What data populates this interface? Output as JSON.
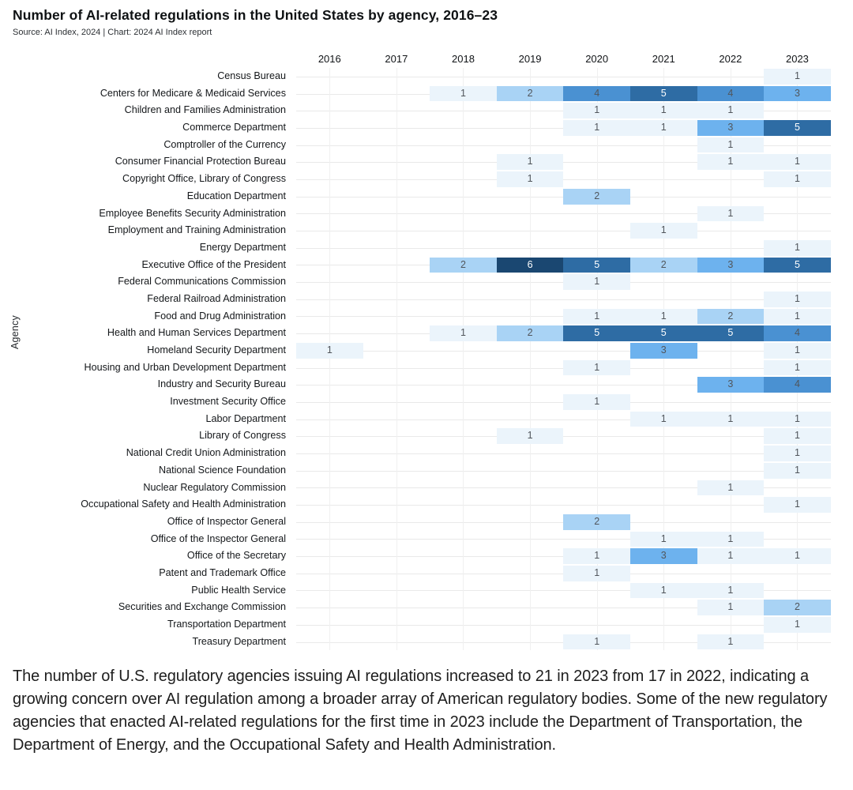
{
  "header": {
    "title": "Number of AI-related regulations in the United States by agency, 2016–23",
    "source": "Source: AI Index, 2024 | Chart: 2024 AI Index report"
  },
  "chart_data": {
    "type": "heatmap",
    "title": "Number of AI-related regulations in the United States by agency, 2016–23",
    "xlabel": "",
    "ylabel": "Agency",
    "columns": [
      "2016",
      "2017",
      "2018",
      "2019",
      "2020",
      "2021",
      "2022",
      "2023"
    ],
    "rows": [
      {
        "agency": "Census Bureau",
        "values": [
          null,
          null,
          null,
          null,
          null,
          null,
          null,
          1
        ]
      },
      {
        "agency": "Centers for Medicare & Medicaid Services",
        "values": [
          null,
          null,
          1,
          2,
          4,
          5,
          4,
          3
        ]
      },
      {
        "agency": "Children and Families Administration",
        "values": [
          null,
          null,
          null,
          null,
          1,
          1,
          1,
          null
        ]
      },
      {
        "agency": "Commerce Department",
        "values": [
          null,
          null,
          null,
          null,
          1,
          1,
          3,
          5
        ]
      },
      {
        "agency": "Comptroller of the Currency",
        "values": [
          null,
          null,
          null,
          null,
          null,
          null,
          1,
          null
        ]
      },
      {
        "agency": "Consumer Financial Protection Bureau",
        "values": [
          null,
          null,
          null,
          1,
          null,
          null,
          1,
          1
        ]
      },
      {
        "agency": "Copyright Office, Library of Congress",
        "values": [
          null,
          null,
          null,
          1,
          null,
          null,
          null,
          1
        ]
      },
      {
        "agency": "Education Department",
        "values": [
          null,
          null,
          null,
          null,
          2,
          null,
          null,
          null
        ]
      },
      {
        "agency": "Employee Benefits Security Administration",
        "values": [
          null,
          null,
          null,
          null,
          null,
          null,
          1,
          null
        ]
      },
      {
        "agency": "Employment and Training Administration",
        "values": [
          null,
          null,
          null,
          null,
          null,
          1,
          null,
          null
        ]
      },
      {
        "agency": "Energy Department",
        "values": [
          null,
          null,
          null,
          null,
          null,
          null,
          null,
          1
        ]
      },
      {
        "agency": "Executive Office of the President",
        "values": [
          null,
          null,
          2,
          6,
          5,
          2,
          3,
          5
        ]
      },
      {
        "agency": "Federal Communications Commission",
        "values": [
          null,
          null,
          null,
          null,
          1,
          null,
          null,
          null
        ]
      },
      {
        "agency": "Federal Railroad Administration",
        "values": [
          null,
          null,
          null,
          null,
          null,
          null,
          null,
          1
        ]
      },
      {
        "agency": "Food and Drug Administration",
        "values": [
          null,
          null,
          null,
          null,
          1,
          1,
          2,
          1
        ]
      },
      {
        "agency": "Health and Human Services Department",
        "values": [
          null,
          null,
          1,
          2,
          5,
          5,
          5,
          4
        ]
      },
      {
        "agency": "Homeland Security Department",
        "values": [
          1,
          null,
          null,
          null,
          null,
          3,
          null,
          1
        ]
      },
      {
        "agency": "Housing and Urban Development Department",
        "values": [
          null,
          null,
          null,
          null,
          1,
          null,
          null,
          1
        ]
      },
      {
        "agency": "Industry and Security Bureau",
        "values": [
          null,
          null,
          null,
          null,
          null,
          null,
          3,
          4
        ]
      },
      {
        "agency": "Investment Security Office",
        "values": [
          null,
          null,
          null,
          null,
          1,
          null,
          null,
          null
        ]
      },
      {
        "agency": "Labor Department",
        "values": [
          null,
          null,
          null,
          null,
          null,
          1,
          1,
          1
        ]
      },
      {
        "agency": "Library of Congress",
        "values": [
          null,
          null,
          null,
          1,
          null,
          null,
          null,
          1
        ]
      },
      {
        "agency": "National Credit Union Administration",
        "values": [
          null,
          null,
          null,
          null,
          null,
          null,
          null,
          1
        ]
      },
      {
        "agency": "National Science Foundation",
        "values": [
          null,
          null,
          null,
          null,
          null,
          null,
          null,
          1
        ]
      },
      {
        "agency": "Nuclear Regulatory Commission",
        "values": [
          null,
          null,
          null,
          null,
          null,
          null,
          1,
          null
        ]
      },
      {
        "agency": "Occupational Safety and Health Administration",
        "values": [
          null,
          null,
          null,
          null,
          null,
          null,
          null,
          1
        ]
      },
      {
        "agency": "Office of Inspector General",
        "values": [
          null,
          null,
          null,
          null,
          2,
          null,
          null,
          null
        ]
      },
      {
        "agency": "Office of the Inspector General",
        "values": [
          null,
          null,
          null,
          null,
          null,
          1,
          1,
          null
        ]
      },
      {
        "agency": "Office of the Secretary",
        "values": [
          null,
          null,
          null,
          null,
          1,
          3,
          1,
          1
        ]
      },
      {
        "agency": "Patent and Trademark Office",
        "values": [
          null,
          null,
          null,
          null,
          1,
          null,
          null,
          null
        ]
      },
      {
        "agency": "Public Health Service",
        "values": [
          null,
          null,
          null,
          null,
          null,
          1,
          1,
          null
        ]
      },
      {
        "agency": "Securities and Exchange Commission",
        "values": [
          null,
          null,
          null,
          null,
          null,
          null,
          1,
          2
        ]
      },
      {
        "agency": "Transportation Department",
        "values": [
          null,
          null,
          null,
          null,
          null,
          null,
          null,
          1
        ]
      },
      {
        "agency": "Treasury Department",
        "values": [
          null,
          null,
          null,
          null,
          1,
          null,
          1,
          null
        ]
      }
    ],
    "color_scale": {
      "1": "#EBF4FB",
      "2": "#A9D3F5",
      "3": "#6DB2EE",
      "4": "#4A91D2",
      "5": "#2E6CA4",
      "6": "#1A4771"
    },
    "light_text_threshold": 5,
    "grid": true,
    "value_range": [
      1,
      6
    ]
  },
  "caption": {
    "text": "The number of U.S. regulatory agencies issuing AI regulations increased to 21 in 2023 from 17 in 2022, indicating a growing concern over AI regulation among a broader array of American regulatory bodies. Some of the new regulatory agencies that enacted AI-related regulations for the first time in 2023 include the Department of Transportation, the Department of Energy, and the Occupational Safety and Health Administration."
  }
}
